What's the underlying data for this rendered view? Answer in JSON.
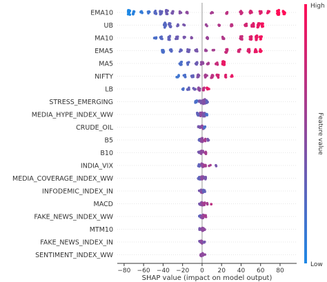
{
  "chart_data": {
    "type": "scatter",
    "title": "",
    "xlabel": "SHAP value (impact on model output)",
    "ylabel": "",
    "xlim": [
      -87,
      97
    ],
    "xticks": [
      -80,
      -60,
      -40,
      -20,
      0,
      20,
      40,
      60,
      80
    ],
    "grid": false,
    "colorbar": {
      "label": "Feature value",
      "high_label": "High",
      "low_label": "Low",
      "low_color": "#1e88e5",
      "high_color": "#ff0d57"
    },
    "features": [
      {
        "name": "EMA10",
        "clusters": [
          [
            -75,
            0.0,
            7
          ],
          [
            -70,
            0.05,
            5
          ],
          [
            -62,
            0.1,
            3
          ],
          [
            -55,
            0.15,
            3
          ],
          [
            -48,
            0.25,
            4
          ],
          [
            -42,
            0.3,
            5
          ],
          [
            -36,
            0.35,
            6
          ],
          [
            -30,
            0.4,
            3
          ],
          [
            -22,
            0.45,
            2
          ],
          [
            -15,
            0.5,
            2
          ],
          [
            10,
            0.6,
            2
          ],
          [
            25,
            0.7,
            3
          ],
          [
            40,
            0.75,
            4
          ],
          [
            50,
            0.8,
            4
          ],
          [
            60,
            0.85,
            4
          ],
          [
            68,
            0.9,
            3
          ],
          [
            78,
            1.0,
            9
          ],
          [
            84,
            1.0,
            5
          ]
        ]
      },
      {
        "name": "UB",
        "clusters": [
          [
            -38,
            0.25,
            8
          ],
          [
            -33,
            0.3,
            5
          ],
          [
            -25,
            0.35,
            2
          ],
          [
            -18,
            0.4,
            2
          ],
          [
            5,
            0.55,
            2
          ],
          [
            18,
            0.65,
            2
          ],
          [
            30,
            0.7,
            3
          ],
          [
            45,
            0.8,
            4
          ],
          [
            52,
            0.85,
            6
          ],
          [
            58,
            0.9,
            6
          ],
          [
            62,
            0.95,
            4
          ]
        ]
      },
      {
        "name": "MA10",
        "clusters": [
          [
            -48,
            0.2,
            3
          ],
          [
            -42,
            0.25,
            3
          ],
          [
            -34,
            0.3,
            5
          ],
          [
            -26,
            0.35,
            4
          ],
          [
            -18,
            0.4,
            3
          ],
          [
            -10,
            0.45,
            2
          ],
          [
            5,
            0.55,
            2
          ],
          [
            22,
            0.65,
            3
          ],
          [
            40,
            0.75,
            4
          ],
          [
            50,
            0.85,
            5
          ],
          [
            56,
            0.9,
            6
          ],
          [
            60,
            0.95,
            4
          ]
        ]
      },
      {
        "name": "EMA5",
        "clusters": [
          [
            -40,
            0.2,
            5
          ],
          [
            -32,
            0.25,
            4
          ],
          [
            -22,
            0.3,
            4
          ],
          [
            -14,
            0.35,
            3
          ],
          [
            -6,
            0.4,
            3
          ],
          [
            4,
            0.55,
            2
          ],
          [
            12,
            0.6,
            2
          ],
          [
            25,
            0.75,
            5
          ],
          [
            38,
            0.8,
            3
          ],
          [
            48,
            0.85,
            5
          ],
          [
            55,
            0.9,
            4
          ],
          [
            60,
            0.95,
            3
          ]
        ]
      },
      {
        "name": "MA5",
        "clusters": [
          [
            -22,
            0.2,
            4
          ],
          [
            -14,
            0.25,
            3
          ],
          [
            -6,
            0.35,
            3
          ],
          [
            0,
            0.5,
            3
          ],
          [
            6,
            0.6,
            2
          ],
          [
            15,
            0.75,
            3
          ],
          [
            22,
            0.9,
            6
          ]
        ]
      },
      {
        "name": "NIFTY",
        "clusters": [
          [
            -25,
            0.15,
            3
          ],
          [
            -18,
            0.2,
            4
          ],
          [
            -10,
            0.3,
            3
          ],
          [
            -4,
            0.45,
            4
          ],
          [
            4,
            0.6,
            4
          ],
          [
            10,
            0.7,
            5
          ],
          [
            16,
            0.8,
            4
          ],
          [
            24,
            0.85,
            3
          ],
          [
            30,
            0.9,
            2
          ]
        ]
      },
      {
        "name": "LB",
        "clusters": [
          [
            -20,
            0.2,
            2
          ],
          [
            -14,
            0.3,
            3
          ],
          [
            -8,
            0.35,
            3
          ],
          [
            -3,
            0.5,
            4
          ],
          [
            2,
            0.7,
            4
          ],
          [
            6,
            0.9,
            3
          ]
        ]
      },
      {
        "name": "STRESS_EMERGING",
        "clusters": [
          [
            -6,
            0.2,
            3
          ],
          [
            -2,
            0.4,
            4
          ],
          [
            2,
            0.45,
            8
          ],
          [
            5,
            0.3,
            3
          ]
        ]
      },
      {
        "name": "MEDIA_HYPE_INDEX_WW",
        "clusters": [
          [
            -4,
            0.3,
            4
          ],
          [
            -1,
            0.5,
            5
          ],
          [
            2,
            0.4,
            5
          ],
          [
            5,
            0.2,
            3
          ]
        ]
      },
      {
        "name": "CRUDE_OIL",
        "clusters": [
          [
            -3,
            0.4,
            3
          ],
          [
            0,
            0.5,
            5
          ],
          [
            3,
            0.2,
            3
          ]
        ]
      },
      {
        "name": "B5",
        "clusters": [
          [
            -3,
            0.3,
            3
          ],
          [
            0,
            0.5,
            5
          ],
          [
            3,
            0.6,
            3
          ],
          [
            6,
            0.4,
            2
          ]
        ]
      },
      {
        "name": "B10",
        "clusters": [
          [
            -3,
            0.4,
            3
          ],
          [
            0,
            0.5,
            5
          ],
          [
            3,
            0.6,
            3
          ]
        ]
      },
      {
        "name": "INDIA_VIX",
        "clusters": [
          [
            -3,
            0.3,
            3
          ],
          [
            0,
            0.5,
            5
          ],
          [
            3,
            0.6,
            3
          ],
          [
            8,
            0.6,
            1
          ],
          [
            14,
            0.4,
            1
          ]
        ]
      },
      {
        "name": "MEDIA_COVERAGE_INDEX_WW",
        "clusters": [
          [
            -3,
            0.3,
            3
          ],
          [
            0,
            0.5,
            5
          ],
          [
            3,
            0.4,
            3
          ]
        ]
      },
      {
        "name": "INFODEMIC_INDEX_IN",
        "clusters": [
          [
            -2,
            0.4,
            3
          ],
          [
            0,
            0.5,
            5
          ],
          [
            2,
            0.3,
            3
          ]
        ]
      },
      {
        "name": "MACD",
        "clusters": [
          [
            -2,
            0.4,
            2
          ],
          [
            0,
            0.5,
            4
          ],
          [
            2,
            0.6,
            3
          ],
          [
            6,
            0.6,
            1
          ],
          [
            10,
            0.7,
            1
          ]
        ]
      },
      {
        "name": "FAKE_NEWS_INDEX_WW",
        "clusters": [
          [
            -2,
            0.3,
            3
          ],
          [
            0,
            0.5,
            5
          ],
          [
            3,
            0.6,
            3
          ]
        ]
      },
      {
        "name": "MTM10",
        "clusters": [
          [
            -2,
            0.4,
            2
          ],
          [
            0,
            0.5,
            4
          ],
          [
            2,
            0.5,
            3
          ]
        ]
      },
      {
        "name": "FAKE_NEWS_INDEX_IN",
        "clusters": [
          [
            -2,
            0.4,
            2
          ],
          [
            0,
            0.5,
            4
          ],
          [
            2,
            0.4,
            2
          ]
        ]
      },
      {
        "name": "SENTIMENT_INDEX_WW",
        "clusters": [
          [
            -2,
            0.5,
            2
          ],
          [
            0,
            0.5,
            4
          ],
          [
            2,
            0.5,
            2
          ]
        ]
      }
    ]
  }
}
